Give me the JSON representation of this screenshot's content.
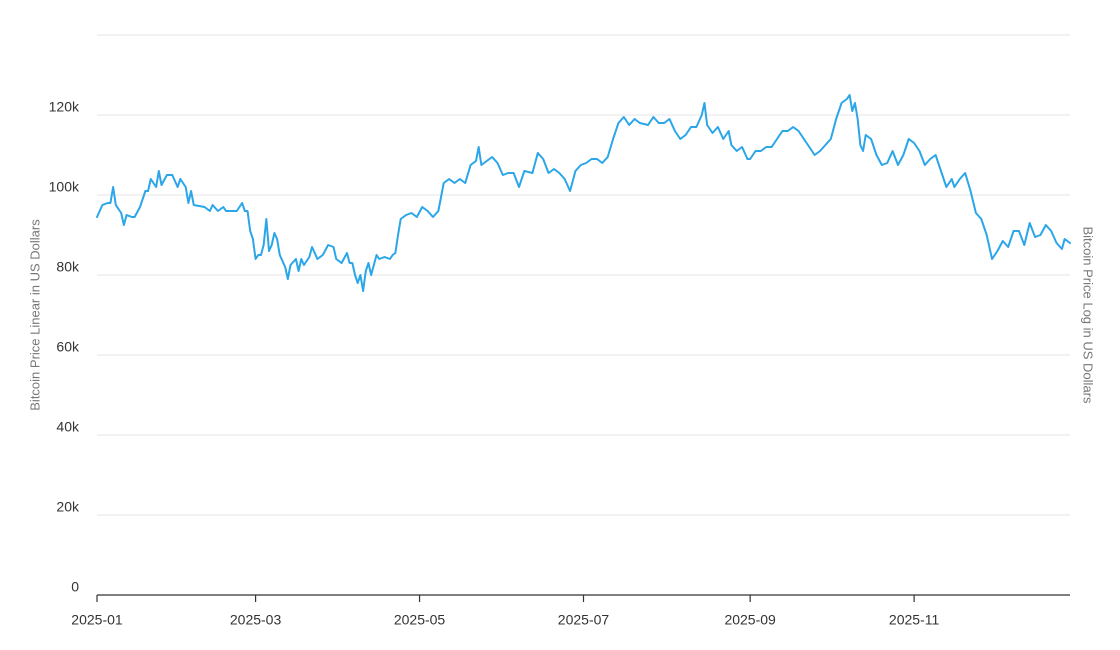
{
  "chart_data": {
    "type": "line",
    "y_label": "Bitcoin Price Linear in US Dollars",
    "y2_label": "Bitcoin Price Log in US Dollars",
    "color": "#2ba6e8",
    "grid": true,
    "xlim": [
      0,
      362
    ],
    "xticks": [
      {
        "value": 0,
        "label": "2025-01"
      },
      {
        "value": 59,
        "label": "2025-03"
      },
      {
        "value": 120,
        "label": "2025-05"
      },
      {
        "value": 181,
        "label": "2025-07"
      },
      {
        "value": 243,
        "label": "2025-09"
      },
      {
        "value": 304,
        "label": "2025-11"
      }
    ],
    "ylim": [
      0,
      140000
    ],
    "yticks": [
      0,
      {
        "value": 20000,
        "label": "20k"
      },
      {
        "value": 40000,
        "label": "40k"
      },
      {
        "value": 60000,
        "label": "60k"
      },
      {
        "value": 80000,
        "label": "80k"
      },
      {
        "value": 100000,
        "label": "100k"
      },
      {
        "value": 120000,
        "label": "120k"
      }
    ],
    "x": [
      0,
      2,
      4,
      5,
      6,
      7,
      9,
      10,
      11,
      13,
      14,
      16,
      18,
      19,
      20,
      22,
      23,
      24,
      26,
      28,
      30,
      31,
      33,
      34,
      35,
      36,
      40,
      42,
      43,
      45,
      47,
      48,
      50,
      52,
      54,
      55,
      56,
      57,
      58,
      59,
      60,
      61,
      62,
      63,
      64,
      65,
      66,
      67,
      68,
      70,
      71,
      72,
      74,
      75,
      76,
      77,
      79,
      80,
      82,
      84,
      86,
      88,
      89,
      91,
      93,
      94,
      95,
      96,
      97,
      98,
      99,
      100,
      101,
      102,
      104,
      105,
      107,
      109,
      110,
      111,
      112,
      113,
      115,
      117,
      119,
      121,
      123,
      125,
      127,
      129,
      131,
      133,
      135,
      137,
      139,
      141,
      142,
      143,
      145,
      147,
      149,
      151,
      153,
      155,
      157,
      159,
      162,
      164,
      166,
      168,
      170,
      172,
      174,
      176,
      178,
      180,
      182,
      184,
      186,
      188,
      190,
      192,
      194,
      196,
      198,
      200,
      202,
      205,
      207,
      209,
      211,
      213,
      215,
      217,
      219,
      221,
      223,
      225,
      226,
      227,
      229,
      231,
      233,
      235,
      236,
      238,
      240,
      242,
      243,
      245,
      247,
      249,
      251,
      253,
      255,
      257,
      259,
      261,
      263,
      265,
      267,
      269,
      271,
      273,
      275,
      277,
      279,
      280,
      281,
      282,
      283,
      284,
      285,
      286,
      288,
      290,
      292,
      294,
      296,
      298,
      300,
      302,
      304,
      306,
      308,
      310,
      312,
      314,
      316,
      318,
      319,
      321,
      323,
      325,
      327,
      329,
      331,
      333,
      335,
      337,
      339,
      341,
      343,
      345,
      347,
      349,
      351,
      353,
      355,
      357,
      359,
      360,
      362
    ],
    "values": [
      94500,
      97500,
      98000,
      98000,
      102000,
      97500,
      95500,
      92500,
      95000,
      94500,
      94500,
      97000,
      101000,
      101000,
      104000,
      102000,
      106000,
      102500,
      105000,
      105000,
      102000,
      104000,
      102000,
      98000,
      101000,
      97500,
      97000,
      96000,
      97500,
      96000,
      97000,
      96000,
      96000,
      96000,
      98000,
      96000,
      96000,
      91000,
      89000,
      84000,
      85000,
      85000,
      87500,
      94000,
      86000,
      87500,
      90500,
      89000,
      85000,
      82000,
      79000,
      82500,
      84000,
      81000,
      84000,
      82500,
      84500,
      87000,
      84000,
      85000,
      87500,
      87000,
      84000,
      83000,
      85500,
      83000,
      83000,
      80000,
      78000,
      80000,
      76000,
      81000,
      83000,
      80000,
      85000,
      84000,
      84500,
      84000,
      85000,
      85500,
      90000,
      94000,
      95000,
      95500,
      94500,
      97000,
      96000,
      94500,
      96000,
      103000,
      104000,
      103000,
      104000,
      103000,
      107500,
      108500,
      112000,
      107500,
      108500,
      109500,
      108000,
      105000,
      105500,
      105500,
      102000,
      106000,
      105500,
      110500,
      109000,
      105500,
      106500,
      105500,
      104000,
      101000,
      106000,
      107500,
      108000,
      109000,
      109000,
      108000,
      109500,
      114000,
      118000,
      119500,
      117500,
      119000,
      118000,
      117500,
      119500,
      118000,
      118000,
      119000,
      116000,
      114000,
      115000,
      117000,
      117000,
      120000,
      123000,
      117500,
      115500,
      117000,
      114000,
      116000,
      112500,
      111000,
      112000,
      109000,
      109000,
      111000,
      111000,
      112000,
      112000,
      114000,
      116000,
      116000,
      117000,
      116000,
      114000,
      112000,
      110000,
      111000,
      112500,
      114000,
      119000,
      123000,
      124000,
      125000,
      121000,
      123000,
      119000,
      112500,
      111000,
      115000,
      114000,
      110000,
      107500,
      108000,
      111000,
      107500,
      110000,
      114000,
      113000,
      111000,
      107500,
      109000,
      110000,
      106000,
      102000,
      104000,
      102000,
      104000,
      105500,
      101000,
      95500,
      94000,
      90000,
      84000,
      86000,
      88500,
      87000,
      91000,
      91000,
      87500,
      93000,
      89500,
      90000,
      92500,
      91000,
      88000,
      86500,
      89000,
      88000
    ]
  }
}
